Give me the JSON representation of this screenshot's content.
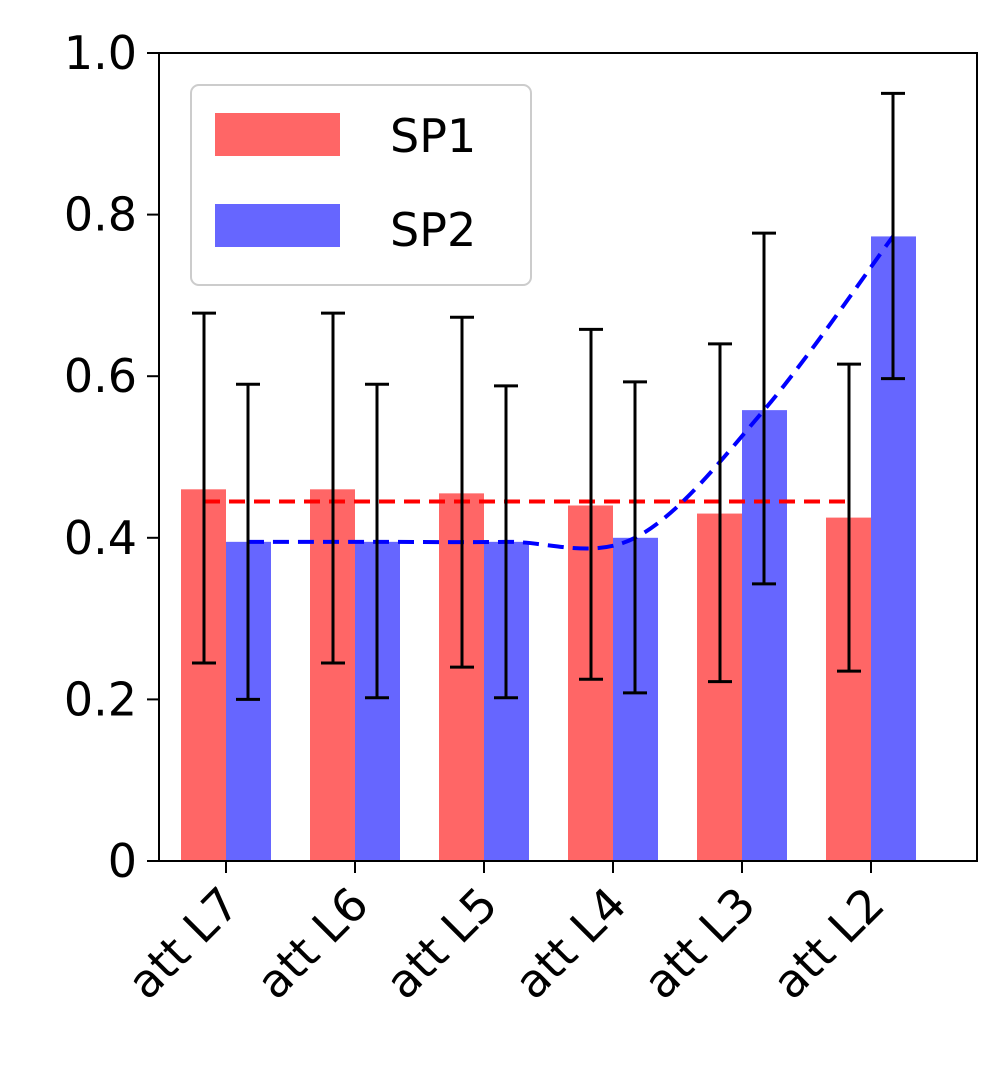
{
  "chart_data": {
    "type": "bar",
    "categories": [
      "att L7",
      "att L6",
      "att L5",
      "att L4",
      "att L3",
      "att L2"
    ],
    "series": [
      {
        "name": "SP1",
        "color": "#ff6666",
        "values": [
          0.46,
          0.46,
          0.455,
          0.44,
          0.43,
          0.425
        ],
        "error_low": [
          0.245,
          0.245,
          0.24,
          0.225,
          0.222,
          0.235
        ],
        "error_high": [
          0.678,
          0.678,
          0.673,
          0.658,
          0.64,
          0.615
        ]
      },
      {
        "name": "SP2",
        "color": "#6666ff",
        "values": [
          0.395,
          0.395,
          0.395,
          0.4,
          0.558,
          0.773
        ],
        "error_low": [
          0.2,
          0.202,
          0.202,
          0.208,
          0.343,
          0.597
        ],
        "error_high": [
          0.59,
          0.59,
          0.588,
          0.593,
          0.777,
          0.95
        ]
      }
    ],
    "trend_lines": [
      {
        "series": "SP1",
        "style": "dashed",
        "color": "#ff0000",
        "values": [
          0.445,
          0.445,
          0.445,
          0.445,
          0.445,
          0.445
        ]
      },
      {
        "series": "SP2",
        "style": "dashed",
        "color": "#0000ff",
        "values": [
          0.395,
          0.395,
          0.395,
          0.4,
          0.558,
          0.773
        ]
      }
    ],
    "ylim": [
      0,
      1.0
    ],
    "yticks": [
      "0",
      "0.2",
      "0.4",
      "0.6",
      "0.8",
      "1.0"
    ],
    "xlabel": "",
    "ylabel": "",
    "title": "",
    "grid": false,
    "legend_position": "top-left"
  }
}
